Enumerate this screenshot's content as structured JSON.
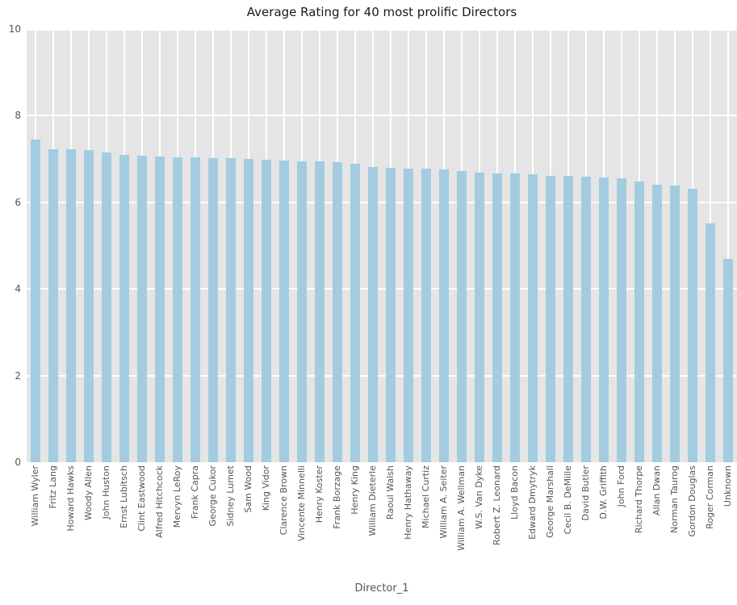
{
  "chart_data": {
    "type": "bar",
    "title": "Average Rating for 40 most prolific Directors",
    "xlabel": "Director_1",
    "ylabel": "",
    "ylim": [
      0,
      10
    ],
    "yticks": [
      0,
      2,
      4,
      6,
      8,
      10
    ],
    "grid": true,
    "legend": false,
    "bar_color": "#a3cce1",
    "plot_background": "#e5e5e5",
    "gridline_color": "#ffffff",
    "title_color": "#1a1a1a",
    "tick_label_color": "#555555",
    "categories": [
      "William Wyler",
      "Fritz Lang",
      "Howard Hawks",
      "Woody Allen",
      "John Huston",
      "Ernst Lubitsch",
      "Clint Eastwood",
      "Alfred Hitchcock",
      "Mervyn LeRoy",
      "Frank Capra",
      "George Cukor",
      "Sidney Lumet",
      "Sam Wood",
      "King Vidor",
      "Clarence Brown",
      "Vincente Minnelli",
      "Henry Koster",
      "Frank Borzage",
      "Henry King",
      "William Dieterle",
      "Raoul Walsh",
      "Henry Hathaway",
      "Michael Curtiz",
      "William A. Seiter",
      "William A. Wellman",
      "W.S. Van Dyke",
      "Robert Z. Leonard",
      "Lloyd Bacon",
      "Edward Dmytryk",
      "George Marshall",
      "Cecil B. DeMille",
      "David Butler",
      "D.W. Griffith",
      "John Ford",
      "Richard Thorpe",
      "Allan Dwan",
      "Norman Taurog",
      "Gordon Douglas",
      "Roger Corman",
      "Unknown"
    ],
    "values": [
      7.45,
      7.23,
      7.22,
      7.21,
      7.16,
      7.1,
      7.07,
      7.05,
      7.03,
      7.03,
      7.02,
      7.02,
      7.0,
      6.99,
      6.96,
      6.95,
      6.94,
      6.93,
      6.89,
      6.82,
      6.8,
      6.78,
      6.77,
      6.76,
      6.72,
      6.69,
      6.67,
      6.66,
      6.65,
      6.62,
      6.61,
      6.6,
      6.58,
      6.55,
      6.48,
      6.41,
      6.39,
      6.31,
      5.52,
      4.7
    ]
  }
}
